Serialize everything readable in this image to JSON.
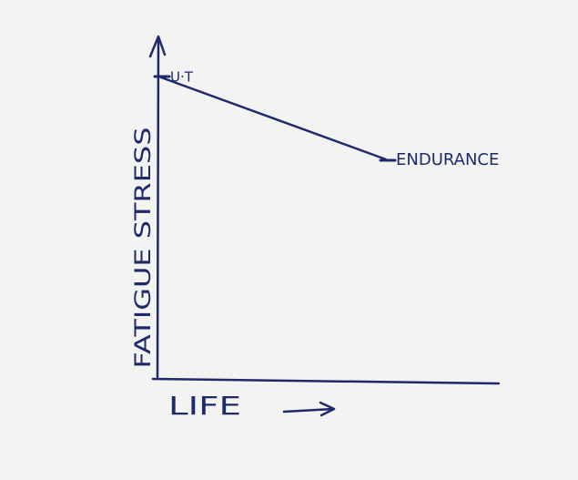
{
  "axes": {
    "y_label": "FATIGUE STRESS",
    "x_label": "LIFE"
  },
  "points": [
    {
      "label": "U·T"
    },
    {
      "label": "ENDURANCE"
    }
  ]
}
